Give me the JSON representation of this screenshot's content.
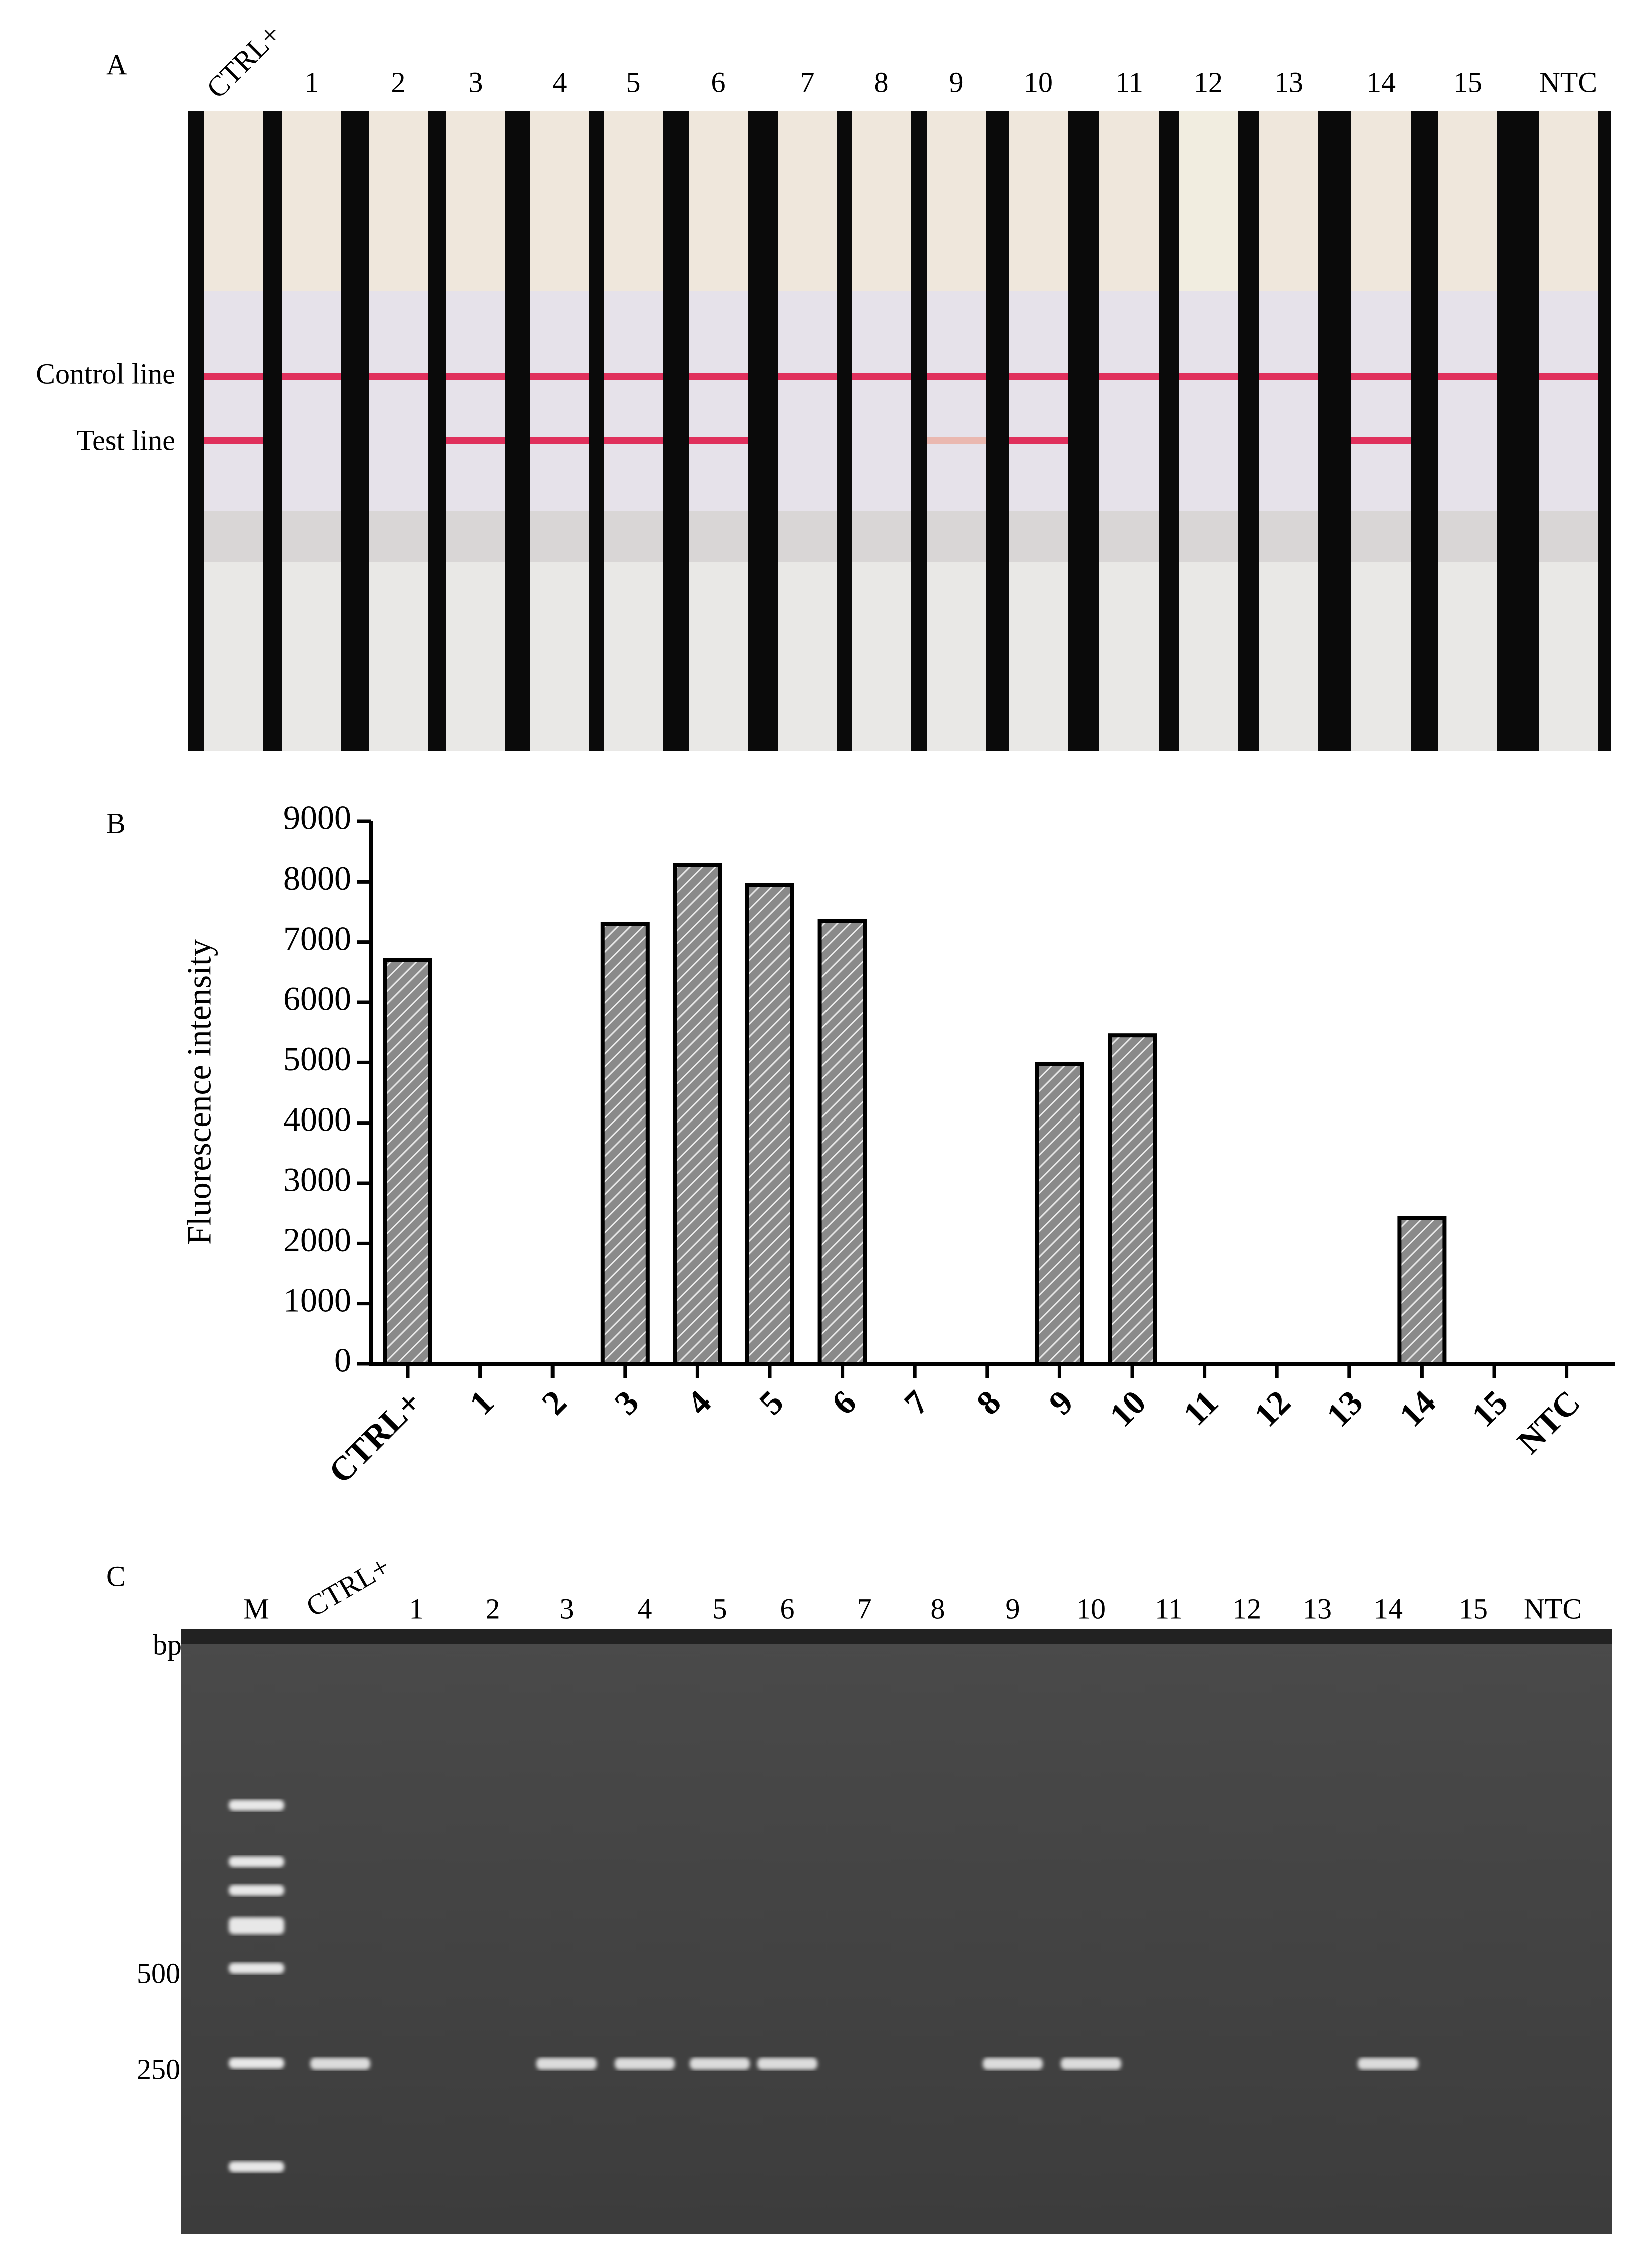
{
  "panel_a": {
    "label": "A",
    "lanes": [
      "CTRL+",
      "1",
      "2",
      "3",
      "4",
      "5",
      "6",
      "7",
      "8",
      "9",
      "10",
      "11",
      "12",
      "13",
      "14",
      "15",
      "NTC"
    ],
    "control_line": "Control line",
    "test_line_label": "Test line",
    "test_line": [
      true,
      false,
      false,
      true,
      true,
      true,
      true,
      false,
      false,
      true,
      true,
      false,
      false,
      false,
      true,
      false,
      false
    ]
  },
  "chart_data": {
    "type": "bar",
    "panel": "B",
    "y_label": "Fluorescence intensity",
    "categories": [
      "CTRL+",
      "1",
      "2",
      "3",
      "4",
      "5",
      "6",
      "7",
      "8",
      "9",
      "10",
      "11",
      "12",
      "13",
      "14",
      "15",
      "NTC"
    ],
    "values": [
      6700,
      0,
      0,
      7300,
      8280,
      7950,
      7350,
      0,
      0,
      4970,
      5450,
      0,
      0,
      0,
      2420,
      0,
      0
    ],
    "color": "#8a8a8a",
    "ylim": [
      0,
      9000
    ],
    "yticks": [
      0,
      1000,
      2000,
      3000,
      4000,
      5000,
      6000,
      7000,
      8000,
      9000
    ]
  },
  "panel_c": {
    "label": "C",
    "lanes": [
      "M",
      "CTRL+",
      "1",
      "2",
      "3",
      "4",
      "5",
      "6",
      "7",
      "8",
      "9",
      "10",
      "11",
      "12",
      "13",
      "14",
      "15",
      "NTC"
    ],
    "unit": "bp",
    "markers": [
      "500",
      "250"
    ],
    "bands": [
      false,
      true,
      false,
      false,
      true,
      true,
      true,
      true,
      false,
      false,
      true,
      true,
      false,
      false,
      false,
      true,
      false,
      false
    ]
  }
}
